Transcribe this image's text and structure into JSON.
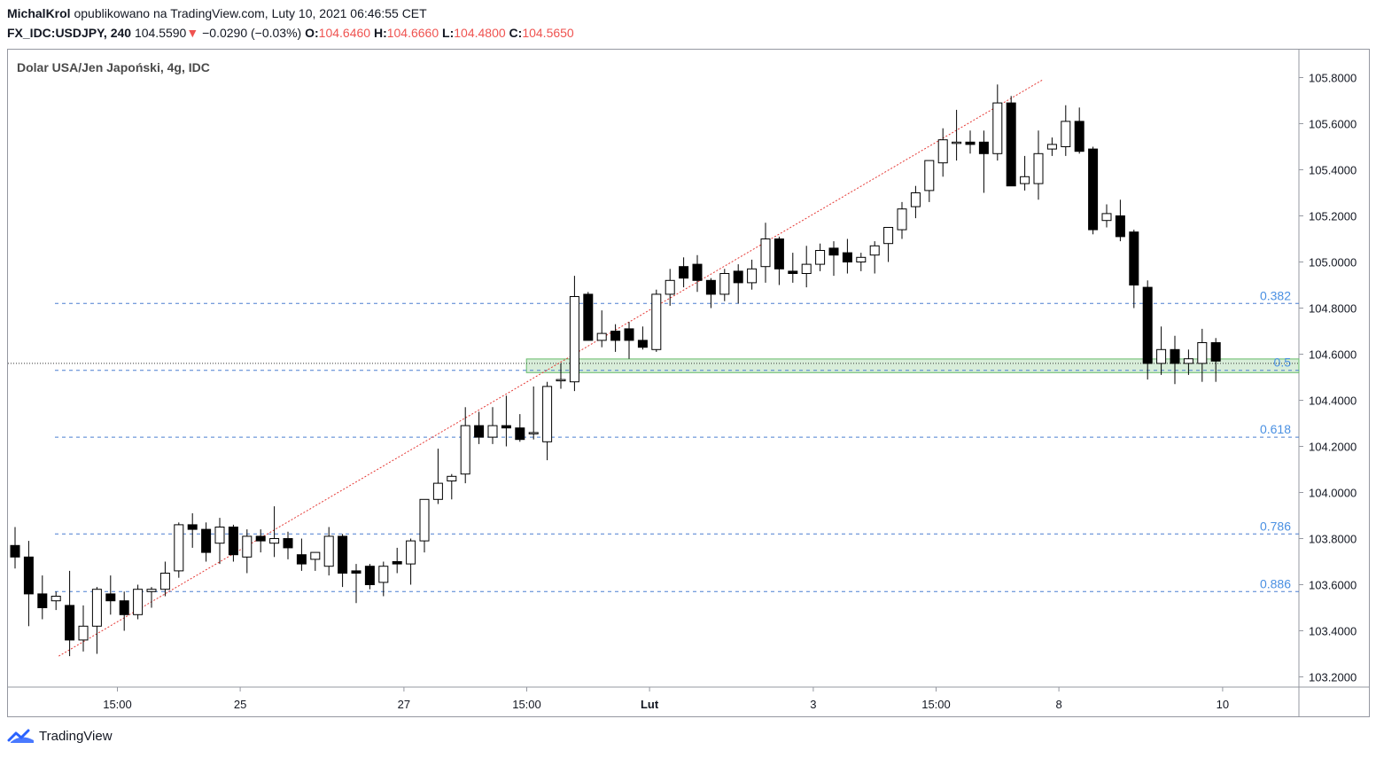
{
  "header": {
    "author": "MichalKrol",
    "published": "opublikowano na TradingView.com, Luty 10, 2021 06:46:55 CET",
    "symbol": "FX_IDC:USDJPY, 240",
    "last": "104.5590",
    "change_arrow": "▼",
    "change": "−0.0290 (−0.03%)",
    "o_label": "O:",
    "o_value": "104.6460",
    "h_label": "H:",
    "h_value": "104.6660",
    "l_label": "L:",
    "l_value": "104.4800",
    "c_label": "C:",
    "c_value": "104.5650"
  },
  "legend": {
    "title": "Dolar USA/Jen Japoński, 4g, IDC"
  },
  "footer": {
    "brand": "TradingView",
    "icon": "tradingview-logo-icon"
  },
  "colors": {
    "up_fill": "#ffffff",
    "down_fill": "#000000",
    "fib_line": "#4a7fd0",
    "fib_text": "#4a90e2",
    "trend": "#e53935",
    "zone_fill": "#c8e6c9",
    "zone_stroke": "#66bb6a"
  },
  "chart_data": {
    "type": "candlestick",
    "title": "Dolar USA/Jen Japoński, 4g, IDC",
    "y_range": [
      103.15,
      105.92
    ],
    "y_ticks": [
      "105.8000",
      "105.6000",
      "105.4000",
      "105.2000",
      "105.0000",
      "104.8000",
      "104.6000",
      "104.4000",
      "104.2000",
      "104.0000",
      "103.8000",
      "103.6000",
      "103.4000",
      "103.2000"
    ],
    "x_ticks": [
      {
        "label": "15:00",
        "bar": 7.5
      },
      {
        "label": "25",
        "bar": 16.5
      },
      {
        "label": "27",
        "bar": 28.5
      },
      {
        "label": "15:00",
        "bar": 37.5
      },
      {
        "label": "Lut",
        "bar": 46.5
      },
      {
        "label": "3",
        "bar": 58.5
      },
      {
        "label": "15:00",
        "bar": 67.5
      },
      {
        "label": "8",
        "bar": 76.5
      },
      {
        "label": "10",
        "bar": 88.5
      }
    ],
    "fib_levels": [
      {
        "label": "0.382",
        "price": 104.82
      },
      {
        "label": "0.5",
        "price": 104.53
      },
      {
        "label": "0.618",
        "price": 104.24
      },
      {
        "label": "0.786",
        "price": 103.82
      },
      {
        "label": "0.886",
        "price": 103.57
      }
    ],
    "current_price": 104.56,
    "support_zone": {
      "low": 104.52,
      "high": 104.56,
      "from_bar": 38
    },
    "trendline": {
      "bar1": 3.2,
      "price1": 103.29,
      "bar2": 75.3,
      "price2": 105.79
    },
    "candles": [
      [
        103.77,
        103.85,
        103.67,
        103.72
      ],
      [
        103.72,
        103.79,
        103.42,
        103.56
      ],
      [
        103.56,
        103.64,
        103.45,
        103.5
      ],
      [
        103.53,
        103.57,
        103.49,
        103.55
      ],
      [
        103.51,
        103.66,
        103.29,
        103.36
      ],
      [
        103.36,
        103.51,
        103.31,
        103.42
      ],
      [
        103.42,
        103.59,
        103.3,
        103.58
      ],
      [
        103.56,
        103.64,
        103.47,
        103.53
      ],
      [
        103.53,
        103.57,
        103.4,
        103.47
      ],
      [
        103.47,
        103.6,
        103.45,
        103.58
      ],
      [
        103.57,
        103.59,
        103.5,
        103.58
      ],
      [
        103.58,
        103.7,
        103.55,
        103.65
      ],
      [
        103.66,
        103.87,
        103.63,
        103.86
      ],
      [
        103.86,
        103.91,
        103.76,
        103.84
      ],
      [
        103.84,
        103.87,
        103.7,
        103.74
      ],
      [
        103.78,
        103.89,
        103.69,
        103.85
      ],
      [
        103.85,
        103.86,
        103.7,
        103.73
      ],
      [
        103.72,
        103.84,
        103.65,
        103.81
      ],
      [
        103.81,
        103.84,
        103.74,
        103.79
      ],
      [
        103.78,
        103.94,
        103.72,
        103.8
      ],
      [
        103.8,
        103.83,
        103.71,
        103.76
      ],
      [
        103.73,
        103.8,
        103.66,
        103.69
      ],
      [
        103.71,
        103.74,
        103.66,
        103.74
      ],
      [
        103.68,
        103.85,
        103.64,
        103.81
      ],
      [
        103.81,
        103.82,
        103.59,
        103.65
      ],
      [
        103.66,
        103.69,
        103.52,
        103.65
      ],
      [
        103.68,
        103.69,
        103.58,
        103.6
      ],
      [
        103.61,
        103.7,
        103.55,
        103.68
      ],
      [
        103.7,
        103.76,
        103.65,
        103.69
      ],
      [
        103.69,
        103.8,
        103.6,
        103.79
      ],
      [
        103.79,
        103.97,
        103.74,
        103.97
      ],
      [
        103.97,
        104.19,
        103.95,
        104.04
      ],
      [
        104.05,
        104.08,
        103.97,
        104.07
      ],
      [
        104.08,
        104.37,
        104.04,
        104.29
      ],
      [
        104.29,
        104.35,
        104.21,
        104.24
      ],
      [
        104.24,
        104.37,
        104.21,
        104.29
      ],
      [
        104.29,
        104.42,
        104.2,
        104.28
      ],
      [
        104.28,
        104.34,
        104.22,
        104.23
      ],
      [
        104.26,
        104.46,
        104.23,
        104.26
      ],
      [
        104.22,
        104.48,
        104.14,
        104.46
      ],
      [
        104.49,
        104.56,
        104.45,
        104.49
      ],
      [
        104.48,
        104.94,
        104.44,
        104.85
      ],
      [
        104.86,
        104.87,
        104.67,
        104.66
      ],
      [
        104.66,
        104.79,
        104.63,
        104.69
      ],
      [
        104.7,
        104.73,
        104.61,
        104.66
      ],
      [
        104.71,
        104.74,
        104.58,
        104.66
      ],
      [
        104.66,
        104.72,
        104.62,
        104.63
      ],
      [
        104.62,
        104.88,
        104.61,
        104.86
      ],
      [
        104.86,
        104.97,
        104.81,
        104.92
      ],
      [
        104.98,
        105.02,
        104.89,
        104.93
      ],
      [
        104.99,
        105.03,
        104.87,
        104.92
      ],
      [
        104.92,
        104.93,
        104.8,
        104.86
      ],
      [
        104.86,
        104.97,
        104.83,
        104.95
      ],
      [
        104.96,
        104.99,
        104.82,
        104.91
      ],
      [
        104.91,
        105.01,
        104.88,
        104.97
      ],
      [
        104.98,
        105.17,
        104.91,
        105.1
      ],
      [
        105.1,
        105.11,
        104.9,
        104.97
      ],
      [
        104.96,
        105.04,
        104.91,
        104.95
      ],
      [
        104.95,
        105.07,
        104.89,
        104.99
      ],
      [
        104.99,
        105.08,
        104.96,
        105.05
      ],
      [
        105.06,
        105.09,
        104.94,
        105.03
      ],
      [
        105.04,
        105.1,
        104.95,
        105.0
      ],
      [
        105.0,
        105.04,
        104.96,
        105.02
      ],
      [
        105.03,
        105.09,
        104.95,
        105.07
      ],
      [
        105.08,
        105.15,
        105.0,
        105.15
      ],
      [
        105.14,
        105.26,
        105.1,
        105.23
      ],
      [
        105.24,
        105.33,
        105.19,
        105.3
      ],
      [
        105.31,
        105.44,
        105.26,
        105.44
      ],
      [
        105.43,
        105.58,
        105.37,
        105.53
      ],
      [
        105.52,
        105.66,
        105.44,
        105.52
      ],
      [
        105.52,
        105.57,
        105.47,
        105.51
      ],
      [
        105.52,
        105.57,
        105.3,
        105.47
      ],
      [
        105.47,
        105.77,
        105.44,
        105.69
      ],
      [
        105.69,
        105.72,
        105.33,
        105.33
      ],
      [
        105.34,
        105.46,
        105.31,
        105.37
      ],
      [
        105.34,
        105.57,
        105.27,
        105.47
      ],
      [
        105.49,
        105.54,
        105.46,
        105.51
      ],
      [
        105.5,
        105.68,
        105.46,
        105.61
      ],
      [
        105.61,
        105.67,
        105.47,
        105.48
      ],
      [
        105.49,
        105.5,
        105.12,
        105.14
      ],
      [
        105.18,
        105.25,
        105.15,
        105.21
      ],
      [
        105.2,
        105.27,
        105.09,
        105.11
      ],
      [
        105.13,
        105.14,
        104.8,
        104.9
      ],
      [
        104.89,
        104.92,
        104.49,
        104.56
      ],
      [
        104.56,
        104.72,
        104.51,
        104.62
      ],
      [
        104.62,
        104.68,
        104.47,
        104.56
      ],
      [
        104.56,
        104.62,
        104.51,
        104.58
      ],
      [
        104.56,
        104.71,
        104.48,
        104.65
      ],
      [
        104.65,
        104.67,
        104.48,
        104.57
      ]
    ]
  }
}
